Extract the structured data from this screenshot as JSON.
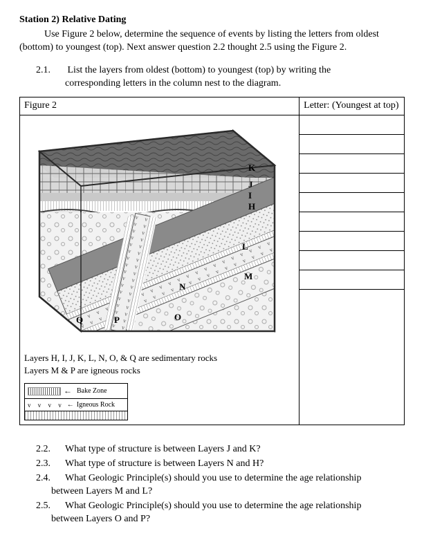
{
  "station": {
    "number": "Station 2)",
    "title": "Relative Dating"
  },
  "intro": "Use Figure 2 below, determine the sequence of events by listing the letters from oldest (bottom) to youngest (top).  Next answer question 2.2 thought 2.5 using the Figure 2.",
  "q21": {
    "num": "2.1.",
    "text_line1": "List the layers from oldest (bottom) to youngest (top) by writing the",
    "text_line2": "corresponding letters in the column nest to the diagram."
  },
  "table": {
    "figure_label": "Figure 2",
    "letter_label": "Letter:  (Youngest at top)",
    "answer_row_count": 10
  },
  "diagram": {
    "labels": {
      "K": "K",
      "J": "J",
      "I": "I",
      "H": "H",
      "L": "L",
      "M": "Mʹ",
      "N": "N",
      "O": "O",
      "P": "P",
      "Q": "Q"
    },
    "colors": {
      "light": "#f5f5f5",
      "mid_gray": "#b0b0b0",
      "dark_gray": "#7a7a7a",
      "dotted": "#e8e8e8",
      "outline": "#2a2a2a",
      "white": "#ffffff"
    }
  },
  "caption": {
    "line1": "Layers H, I, J, K, L, N, O, & Q are sedimentary rocks",
    "line2": "Layers M & P are igneous rocks"
  },
  "legend": {
    "bake_zone": "Bake Zone",
    "igneous": "Igneous Rock"
  },
  "questions": [
    {
      "num": "2.2.",
      "text": "What type of structure is between Layers J and K?"
    },
    {
      "num": "2.3.",
      "text": "What type of structure is between Layers N and H?"
    },
    {
      "num": "2.4.",
      "text": "What Geologic Principle(s) should you use to determine the age relationship between Layers M and L?"
    },
    {
      "num": "2.5.",
      "text": "What Geologic Principle(s) should you use to determine the age relationship between Layers O and P?"
    }
  ]
}
